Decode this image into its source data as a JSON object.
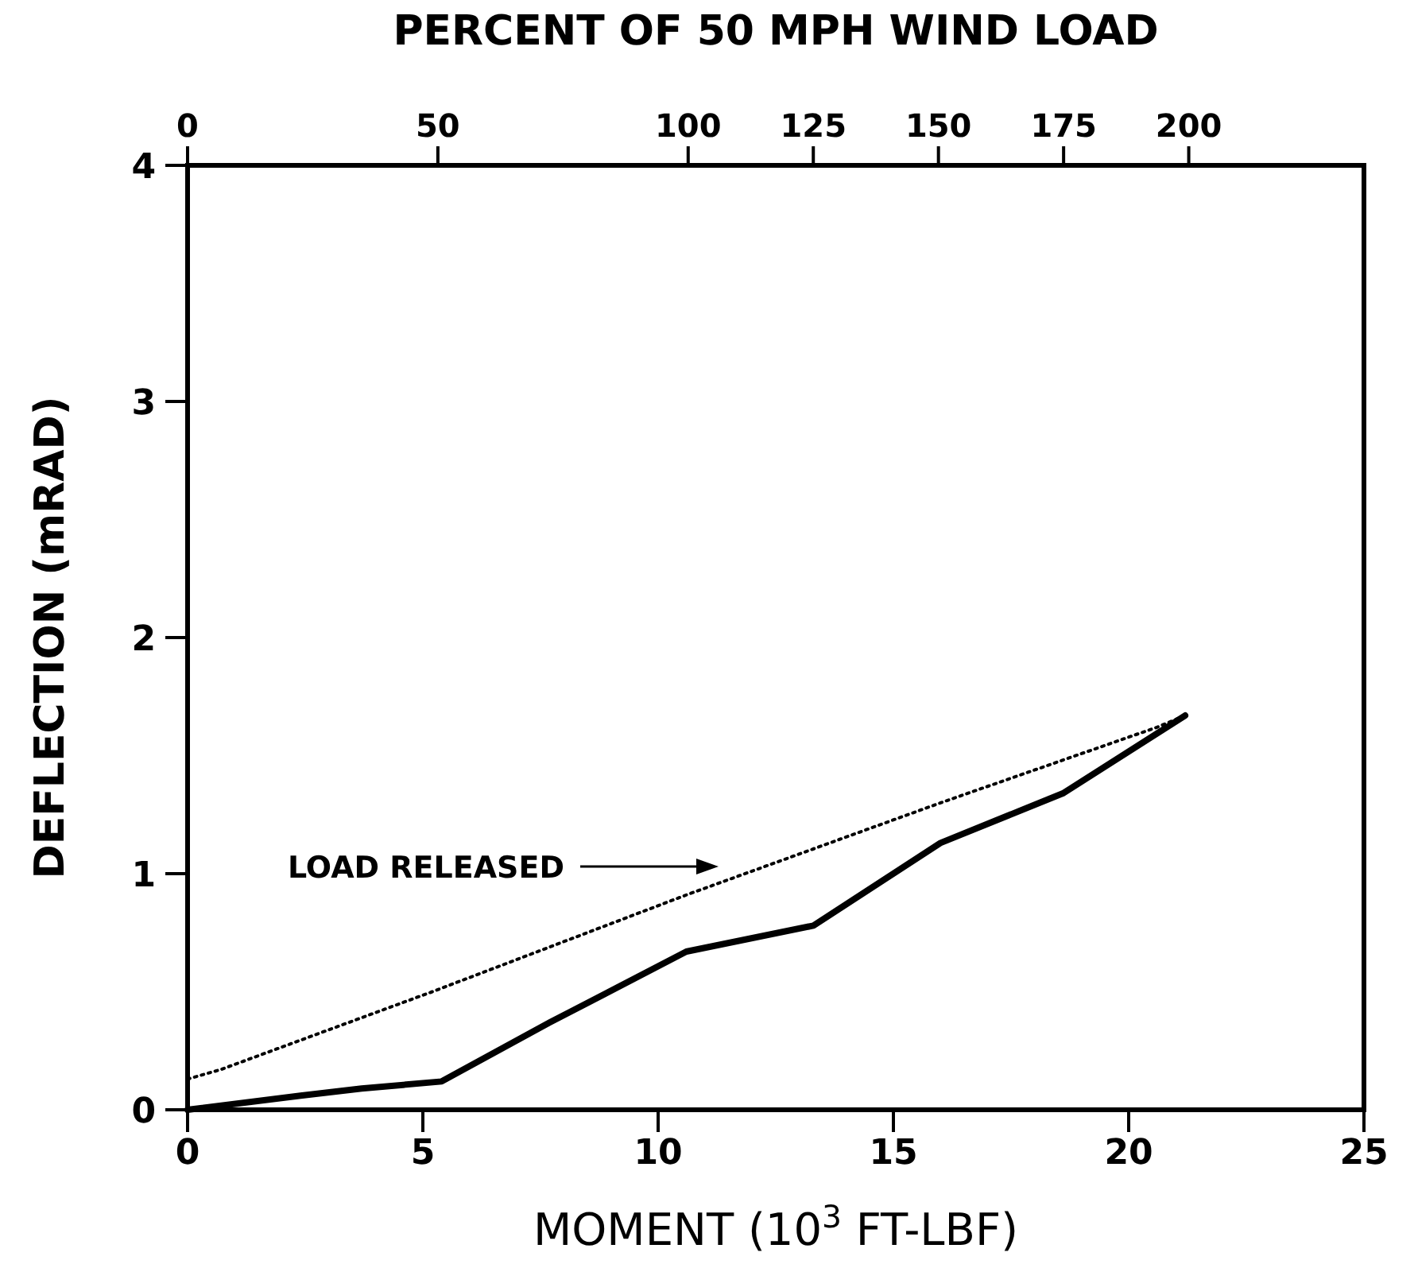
{
  "chart_data": {
    "type": "line",
    "xlabel": "MOMENT (10$^{3}$ FT-LBF)",
    "ylabel": "DEFLECTION (mRAD)",
    "x2label": "PERCENT OF 50 MPH WIND LOAD",
    "xlim": [
      0,
      25
    ],
    "xticks": [
      0,
      5,
      10,
      15,
      20,
      25
    ],
    "ylim": [
      0,
      4
    ],
    "yticks": [
      0,
      1,
      2,
      3,
      4
    ],
    "x2lim": [
      0,
      235
    ],
    "x2ticks": [
      0,
      50,
      100,
      125,
      150,
      175,
      200
    ],
    "grid": false,
    "marker": "none",
    "series": [
      {
        "color": "#000000",
        "line_style": "solid",
        "x": [
          0,
          2.4,
          3.7,
          5.4,
          7.7,
          10.6,
          13.3,
          16.0,
          18.6,
          21.2
        ],
        "values": [
          0,
          0.06,
          0.09,
          0.12,
          0.37,
          0.67,
          0.78,
          1.13,
          1.34,
          1.67
        ]
      },
      {
        "color": "#000000",
        "line_style": "dotted",
        "x": [
          0,
          0.7,
          5.2,
          10.6,
          16.0,
          20.6,
          21.2
        ],
        "values": [
          0.13,
          0.17,
          0.5,
          0.91,
          1.3,
          1.62,
          1.67
        ]
      }
    ],
    "annotations": [
      "LOAD RELEASED"
    ]
  }
}
